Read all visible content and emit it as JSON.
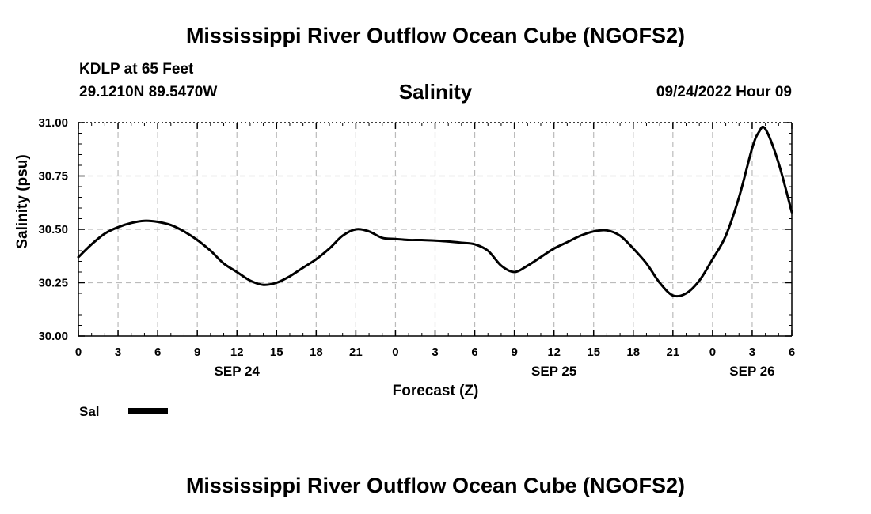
{
  "header": {
    "title": "Mississippi River Outflow Ocean Cube (NGOFS2)",
    "station": "KDLP at 65 Feet",
    "coords": "29.1210N  89.5470W",
    "timestamp": "09/24/2022 Hour 09"
  },
  "footer": {
    "title": "Mississippi River Outflow Ocean Cube (NGOFS2)"
  },
  "colors": {
    "line": "#000000",
    "grid": "#bbbbbb"
  },
  "chart_data": {
    "type": "line",
    "title": "Salinity",
    "xlabel": "Forecast (Z)",
    "ylabel": "Salinity (psu)",
    "x_unit": "hours",
    "xlim": [
      0,
      54
    ],
    "ylim": [
      30.0,
      31.0
    ],
    "grid": true,
    "legend_position": "bottom-left",
    "x_ticks": [
      {
        "hour": 0,
        "label": "0"
      },
      {
        "hour": 3,
        "label": "3"
      },
      {
        "hour": 6,
        "label": "6"
      },
      {
        "hour": 9,
        "label": "9"
      },
      {
        "hour": 12,
        "label": "12"
      },
      {
        "hour": 15,
        "label": "15"
      },
      {
        "hour": 18,
        "label": "18"
      },
      {
        "hour": 21,
        "label": "21"
      },
      {
        "hour": 24,
        "label": "0"
      },
      {
        "hour": 27,
        "label": "3"
      },
      {
        "hour": 30,
        "label": "6"
      },
      {
        "hour": 33,
        "label": "9"
      },
      {
        "hour": 36,
        "label": "12"
      },
      {
        "hour": 39,
        "label": "15"
      },
      {
        "hour": 42,
        "label": "18"
      },
      {
        "hour": 45,
        "label": "21"
      },
      {
        "hour": 48,
        "label": "0"
      },
      {
        "hour": 51,
        "label": "3"
      },
      {
        "hour": 54,
        "label": "6"
      }
    ],
    "date_labels": [
      {
        "hour": 12,
        "label": "SEP 24"
      },
      {
        "hour": 36,
        "label": "SEP 25"
      },
      {
        "hour": 51,
        "label": "SEP 26"
      }
    ],
    "y_ticks": [
      {
        "value": 30.0,
        "label": "30.00"
      },
      {
        "value": 30.25,
        "label": "30.25"
      },
      {
        "value": 30.5,
        "label": "30.50"
      },
      {
        "value": 30.75,
        "label": "30.75"
      },
      {
        "value": 31.0,
        "label": "31.00"
      }
    ],
    "series": [
      {
        "name": "Sal",
        "x": [
          0,
          1,
          2,
          3,
          4,
          5,
          6,
          7,
          8,
          9,
          10,
          11,
          12,
          13,
          14,
          15,
          16,
          17,
          18,
          19,
          20,
          21,
          22,
          23,
          24,
          25,
          26,
          27,
          28,
          29,
          30,
          31,
          32,
          33,
          34,
          35,
          36,
          37,
          38,
          39,
          40,
          41,
          42,
          43,
          44,
          45,
          46,
          47,
          48,
          49,
          50,
          51,
          51.5,
          52,
          53,
          54
        ],
        "y": [
          30.37,
          30.43,
          30.48,
          30.51,
          30.53,
          30.54,
          30.535,
          30.52,
          30.49,
          30.45,
          30.4,
          30.34,
          30.3,
          30.26,
          30.24,
          30.25,
          30.28,
          30.32,
          30.36,
          30.41,
          30.47,
          30.5,
          30.49,
          30.46,
          30.455,
          30.45,
          30.45,
          30.447,
          30.443,
          30.437,
          30.43,
          30.4,
          30.33,
          30.3,
          30.33,
          30.37,
          30.41,
          30.44,
          30.47,
          30.49,
          30.495,
          30.47,
          30.41,
          30.34,
          30.25,
          30.19,
          30.2,
          30.26,
          30.36,
          30.47,
          30.65,
          30.88,
          30.955,
          30.97,
          30.81,
          30.58
        ]
      }
    ]
  }
}
